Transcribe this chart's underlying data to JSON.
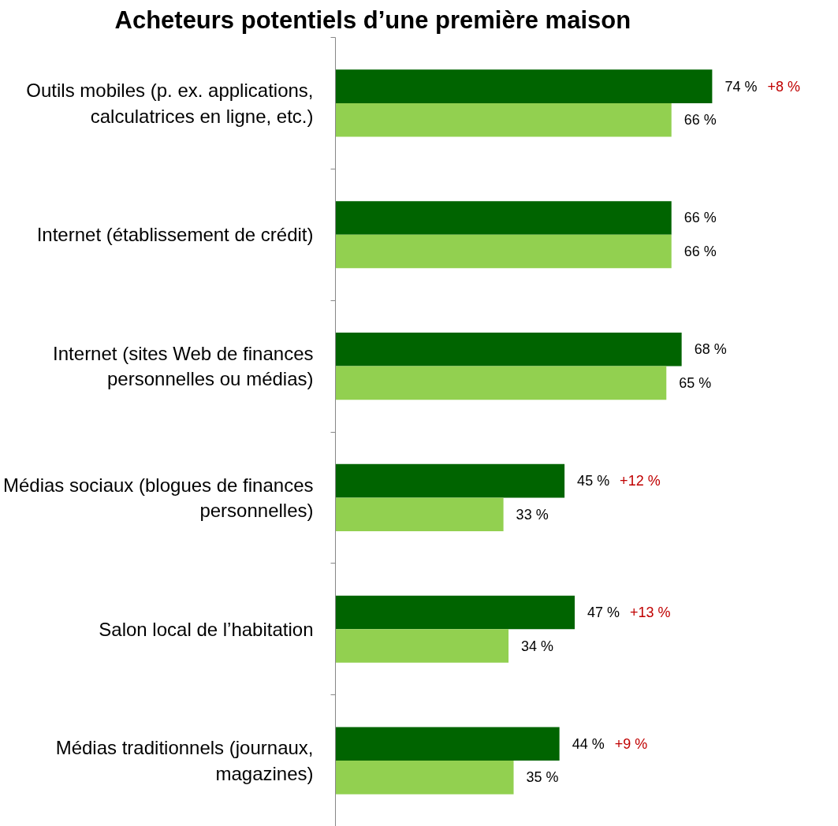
{
  "chart_data": {
    "type": "bar",
    "orientation": "horizontal",
    "title": "Acheteurs potentiels d’une première maison",
    "categories": [
      "Outils mobiles (p. ex. applications, calculatrices en ligne, etc.)",
      "Internet (établissement de crédit)",
      "Internet (sites Web de finances personnelles ou médias)",
      "Médias sociaux (blogues de finances personnelles)",
      "Salon local de l’habitation",
      "Médias traditionnels (journaux, magazines)"
    ],
    "series": [
      {
        "color": "#006400",
        "values": [
          74,
          66,
          68,
          45,
          47,
          44
        ],
        "value_labels": [
          "74 %",
          "66 %",
          "68 %",
          "45 %",
          "47 %",
          "44 %"
        ]
      },
      {
        "color": "#92d050",
        "values": [
          66,
          66,
          65,
          33,
          34,
          35
        ],
        "value_labels": [
          "66 %",
          "66 %",
          "65 %",
          "33 %",
          "34 %",
          "35 %"
        ]
      }
    ],
    "annotations": [
      "+8 %",
      "+12 %",
      "+13 %",
      "+9 %"
    ],
    "grid": false
  }
}
